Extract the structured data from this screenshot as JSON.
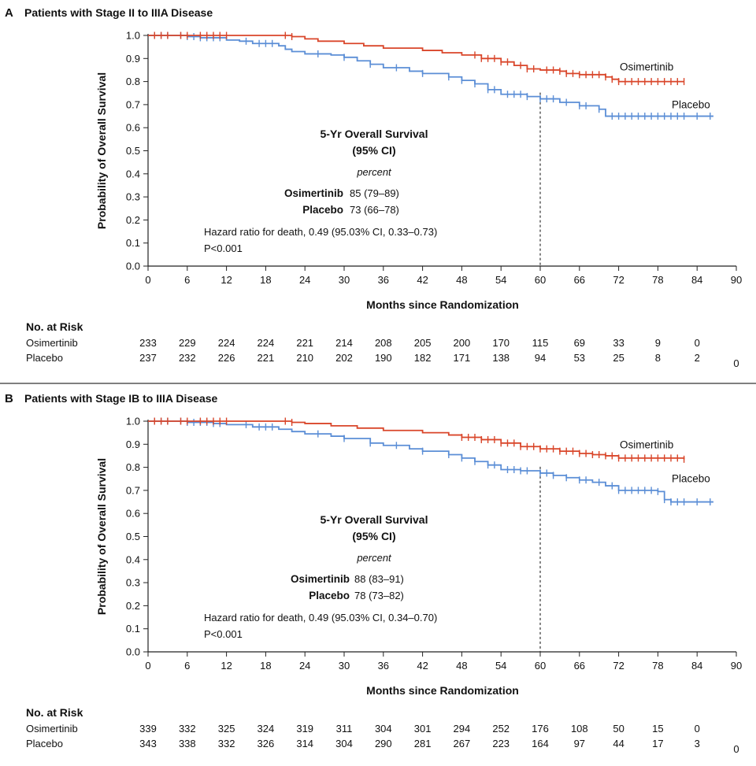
{
  "colors": {
    "osimertinib": "#d9462a",
    "placebo": "#5b8ed6",
    "axis": "#222222",
    "divider": "#555555"
  },
  "x_axis_title": "Months since Randomization",
  "y_axis_title": "Probability of Overall Survival",
  "risk_header": "No. at Risk",
  "chart_data": [
    {
      "type": "line",
      "panel_letter": "A",
      "title": "Patients with Stage II to IIIA Disease",
      "xlabel": "Months since Randomization",
      "ylabel": "Probability of Overall Survival",
      "xlim": [
        0,
        90
      ],
      "ylim": [
        0,
        1.0
      ],
      "x_ticks": [
        0,
        6,
        12,
        18,
        24,
        30,
        36,
        42,
        48,
        54,
        60,
        66,
        72,
        78,
        84,
        90
      ],
      "y_ticks": [
        "0.0",
        "0.1",
        "0.2",
        "0.3",
        "0.4",
        "0.5",
        "0.6",
        "0.7",
        "0.8",
        "0.9",
        "1.0"
      ],
      "reference_line_x": 60,
      "series": [
        {
          "name": "Osimertinib",
          "points": [
            [
              0,
              1.0
            ],
            [
              20,
              1.0
            ],
            [
              22,
              0.995
            ],
            [
              24,
              0.985
            ],
            [
              26,
              0.975
            ],
            [
              30,
              0.965
            ],
            [
              33,
              0.955
            ],
            [
              36,
              0.945
            ],
            [
              42,
              0.935
            ],
            [
              45,
              0.925
            ],
            [
              48,
              0.915
            ],
            [
              51,
              0.9
            ],
            [
              54,
              0.885
            ],
            [
              56,
              0.87
            ],
            [
              58,
              0.855
            ],
            [
              60,
              0.85
            ],
            [
              63,
              0.845
            ],
            [
              64,
              0.835
            ],
            [
              66,
              0.83
            ],
            [
              70,
              0.82
            ],
            [
              71,
              0.81
            ],
            [
              72,
              0.8
            ],
            [
              82,
              0.8
            ]
          ],
          "censor_x": [
            1,
            2,
            3,
            5,
            6,
            8,
            9,
            10,
            11,
            12,
            21,
            22,
            50,
            51,
            52,
            53,
            54,
            55,
            57,
            58,
            59,
            61,
            62,
            63,
            64,
            65,
            66,
            67,
            68,
            69,
            70,
            71,
            72,
            73,
            74,
            75,
            76,
            77,
            78,
            79,
            80,
            81,
            82
          ]
        },
        {
          "name": "Placebo",
          "points": [
            [
              0,
              1.0
            ],
            [
              6,
              0.995
            ],
            [
              8,
              0.99
            ],
            [
              12,
              0.98
            ],
            [
              14,
              0.975
            ],
            [
              16,
              0.965
            ],
            [
              20,
              0.955
            ],
            [
              21,
              0.94
            ],
            [
              22,
              0.93
            ],
            [
              24,
              0.92
            ],
            [
              28,
              0.915
            ],
            [
              30,
              0.905
            ],
            [
              32,
              0.89
            ],
            [
              34,
              0.875
            ],
            [
              36,
              0.86
            ],
            [
              40,
              0.845
            ],
            [
              42,
              0.835
            ],
            [
              46,
              0.82
            ],
            [
              48,
              0.805
            ],
            [
              50,
              0.79
            ],
            [
              52,
              0.765
            ],
            [
              54,
              0.745
            ],
            [
              58,
              0.735
            ],
            [
              60,
              0.725
            ],
            [
              63,
              0.71
            ],
            [
              66,
              0.695
            ],
            [
              69,
              0.68
            ],
            [
              70,
              0.65
            ],
            [
              86.5,
              0.65
            ]
          ],
          "censor_x": [
            1,
            2,
            3,
            5,
            6,
            7,
            8,
            9,
            10,
            11,
            15,
            17,
            18,
            19,
            26,
            30,
            34,
            38,
            42,
            46,
            48,
            50,
            52,
            53,
            55,
            56,
            57,
            58,
            60,
            61,
            62,
            64,
            66,
            67,
            69,
            71,
            72,
            73,
            74,
            75,
            76,
            77,
            78,
            79,
            80,
            81,
            82,
            84,
            86
          ]
        }
      ],
      "labels": {
        "osimertinib": "Osimertinib",
        "placebo": "Placebo"
      },
      "summary": {
        "title_line1": "5-Yr Overall Survival",
        "title_line2": "(95% CI)",
        "unit": "percent",
        "rows": [
          {
            "name": "Osimertinib",
            "value": "85 (79–89)"
          },
          {
            "name": "Placebo",
            "value": "73 (66–78)"
          }
        ],
        "hazard": "Hazard ratio for death, 0.49 (95.03% CI, 0.33–0.73)",
        "pvalue": "P<0.001"
      },
      "risk_times": [
        0,
        6,
        12,
        18,
        24,
        30,
        36,
        42,
        48,
        54,
        60,
        66,
        72,
        78,
        84,
        90
      ],
      "at_risk": [
        {
          "name": "Osimertinib",
          "values": [
            "233",
            "229",
            "224",
            "224",
            "221",
            "214",
            "208",
            "205",
            "200",
            "170",
            "115",
            "69",
            "33",
            "9",
            "0",
            ""
          ]
        },
        {
          "name": "Placebo",
          "values": [
            "237",
            "232",
            "226",
            "221",
            "210",
            "202",
            "190",
            "182",
            "171",
            "138",
            "94",
            "53",
            "25",
            "8",
            "2",
            "0"
          ]
        }
      ]
    },
    {
      "type": "line",
      "panel_letter": "B",
      "title": "Patients with Stage IB to IIIA Disease",
      "xlabel": "Months since Randomization",
      "ylabel": "Probability of Overall Survival",
      "xlim": [
        0,
        90
      ],
      "ylim": [
        0,
        1.0
      ],
      "x_ticks": [
        0,
        6,
        12,
        18,
        24,
        30,
        36,
        42,
        48,
        54,
        60,
        66,
        72,
        78,
        84,
        90
      ],
      "y_ticks": [
        "0.0",
        "0.1",
        "0.2",
        "0.3",
        "0.4",
        "0.5",
        "0.6",
        "0.7",
        "0.8",
        "0.9",
        "1.0"
      ],
      "reference_line_x": 60,
      "series": [
        {
          "name": "Osimertinib",
          "points": [
            [
              0,
              1.0
            ],
            [
              20,
              1.0
            ],
            [
              22,
              0.995
            ],
            [
              24,
              0.99
            ],
            [
              28,
              0.98
            ],
            [
              32,
              0.97
            ],
            [
              36,
              0.96
            ],
            [
              42,
              0.95
            ],
            [
              46,
              0.94
            ],
            [
              48,
              0.93
            ],
            [
              51,
              0.92
            ],
            [
              54,
              0.905
            ],
            [
              57,
              0.89
            ],
            [
              60,
              0.88
            ],
            [
              63,
              0.87
            ],
            [
              66,
              0.86
            ],
            [
              68,
              0.855
            ],
            [
              70,
              0.85
            ],
            [
              72,
              0.84
            ],
            [
              82,
              0.835
            ]
          ],
          "censor_x": [
            1,
            2,
            3,
            5,
            6,
            8,
            9,
            10,
            11,
            12,
            21,
            22,
            48,
            49,
            50,
            51,
            52,
            53,
            54,
            55,
            56,
            57,
            58,
            59,
            60,
            61,
            62,
            63,
            64,
            65,
            66,
            67,
            68,
            69,
            70,
            71,
            72,
            73,
            74,
            75,
            76,
            77,
            78,
            79,
            80,
            81,
            82
          ]
        },
        {
          "name": "Placebo",
          "points": [
            [
              0,
              1.0
            ],
            [
              6,
              0.995
            ],
            [
              10,
              0.99
            ],
            [
              12,
              0.985
            ],
            [
              16,
              0.975
            ],
            [
              20,
              0.965
            ],
            [
              22,
              0.955
            ],
            [
              24,
              0.945
            ],
            [
              28,
              0.935
            ],
            [
              30,
              0.925
            ],
            [
              34,
              0.905
            ],
            [
              36,
              0.895
            ],
            [
              40,
              0.88
            ],
            [
              42,
              0.87
            ],
            [
              46,
              0.855
            ],
            [
              48,
              0.84
            ],
            [
              50,
              0.825
            ],
            [
              52,
              0.81
            ],
            [
              54,
              0.79
            ],
            [
              57,
              0.785
            ],
            [
              60,
              0.775
            ],
            [
              62,
              0.765
            ],
            [
              64,
              0.755
            ],
            [
              66,
              0.745
            ],
            [
              68,
              0.735
            ],
            [
              70,
              0.72
            ],
            [
              72,
              0.7
            ],
            [
              78,
              0.695
            ],
            [
              79,
              0.66
            ],
            [
              80,
              0.65
            ],
            [
              86.5,
              0.65
            ]
          ],
          "censor_x": [
            1,
            2,
            3,
            5,
            6,
            7,
            8,
            9,
            10,
            11,
            15,
            17,
            18,
            19,
            26,
            30,
            34,
            38,
            42,
            46,
            48,
            50,
            52,
            53,
            55,
            56,
            57,
            58,
            60,
            61,
            62,
            64,
            66,
            67,
            69,
            71,
            72,
            73,
            74,
            75,
            76,
            77,
            78,
            79,
            80,
            81,
            82,
            84,
            86
          ]
        }
      ],
      "labels": {
        "osimertinib": "Osimertinib",
        "placebo": "Placebo"
      },
      "summary": {
        "title_line1": "5-Yr Overall Survival",
        "title_line2": "(95% CI)",
        "unit": "percent",
        "rows": [
          {
            "name": "Osimertinib",
            "value": "88 (83–91)"
          },
          {
            "name": "Placebo",
            "value": "78 (73–82)"
          }
        ],
        "hazard": "Hazard ratio for death, 0.49 (95.03% CI, 0.34–0.70)",
        "pvalue": "P<0.001"
      },
      "risk_times": [
        0,
        6,
        12,
        18,
        24,
        30,
        36,
        42,
        48,
        54,
        60,
        66,
        72,
        78,
        84,
        90
      ],
      "at_risk": [
        {
          "name": "Osimertinib",
          "values": [
            "339",
            "332",
            "325",
            "324",
            "319",
            "311",
            "304",
            "301",
            "294",
            "252",
            "176",
            "108",
            "50",
            "15",
            "0",
            ""
          ]
        },
        {
          "name": "Placebo",
          "values": [
            "343",
            "338",
            "332",
            "326",
            "314",
            "304",
            "290",
            "281",
            "267",
            "223",
            "164",
            "97",
            "44",
            "17",
            "3",
            "0"
          ]
        }
      ]
    }
  ]
}
